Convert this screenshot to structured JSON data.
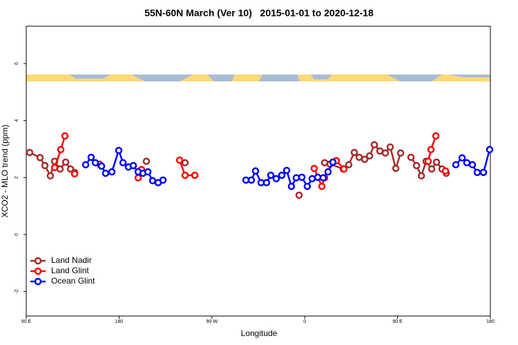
{
  "chart_data": {
    "type": "line",
    "title": "55N-60N March (Ver 10)   2015-01-01 to 2020-12-18",
    "x_label": "Longitude",
    "y_label": "XCO2 - MLO trend (ppm)",
    "xlim": [
      90,
      540
    ],
    "ylim": [
      -2.86,
      7.31
    ],
    "xticks": [
      {
        "value": 90,
        "label": "90 E"
      },
      180,
      {
        "value": 270,
        "label": "90 W"
      },
      {
        "value": 360,
        "label": "0"
      },
      {
        "value": 450,
        "label": "90 E"
      },
      {
        "value": 540,
        "label": "180"
      }
    ],
    "yticks": [
      -2,
      0,
      2,
      4,
      6
    ],
    "legend": "bottom-left",
    "series": [
      {
        "name": "Land Nadir",
        "color": "#a52a2a",
        "x": [
          93.3,
          103.4,
          108.1,
          113.4,
          117.5,
          122.8,
          128.2,
          132.9,
          136.9,
          150,
          161,
          185,
          206.5,
          225,
          244,
          300,
          354.5,
          365,
          379.3,
          384.6,
          397.4,
          402.7,
          408.1,
          412.8,
          418.1,
          422.9,
          427.5,
          432.9,
          438.2,
          442.9,
          448.3,
          453,
          458,
          463,
          468.4,
          473.1,
          477.7,
          483.1,
          487.8,
          493.1,
          497.2
        ],
        "values": [
          2.88,
          2.7,
          2.42,
          2.06,
          2.57,
          2.3,
          2.54,
          2.3,
          2.18,
          null,
          2.47,
          null,
          2.57,
          null,
          2.52,
          null,
          1.38,
          null,
          2.52,
          2.47,
          2.3,
          2.45,
          2.88,
          2.71,
          2.64,
          2.76,
          3.15,
          2.93,
          2.86,
          3.07,
          2.32,
          2.86,
          null,
          2.71,
          2.42,
          2.06,
          2.57,
          2.3,
          2.54,
          2.3,
          2.15
        ]
      },
      {
        "name": "Land Glint",
        "color": "#ff0000",
        "x": [
          117.5,
          123.5,
          127.5,
          130,
          136.9,
          170,
          198.5,
          201.8,
          220,
          238.7,
          244,
          253.4,
          300,
          369.2,
          376.6,
          379.3,
          384,
          390.7,
          398,
          440,
          479.7,
          482.4,
          487.1,
          492,
          496.5
        ],
        "values": [
          2.35,
          2.98,
          3.46,
          null,
          2.13,
          null,
          1.99,
          2.28,
          null,
          2.61,
          2.08,
          2.08,
          null,
          2.32,
          1.69,
          1.99,
          null,
          2.59,
          2.3,
          null,
          2.57,
          2.98,
          3.46,
          null,
          2.23
        ]
      },
      {
        "name": "Ocean Glint",
        "color": "#0000ff",
        "x": [
          147.6,
          152.9,
          157,
          163,
          166.9,
          173,
          179.7,
          183.8,
          189.1,
          193.8,
          198.5,
          203.2,
          207.9,
          212.5,
          217.9,
          222.6,
          260,
          303,
          308.3,
          312.3,
          317.7,
          323,
          327.1,
          332.4,
          337.8,
          342.5,
          347.1,
          351.8,
          357.2,
          362.5,
          367.2,
          372.6,
          377.9,
          382.6,
          387.3,
          450,
          506.5,
          512.6,
          517.2,
          522.6,
          527.3,
          533.3,
          539.3
        ],
        "values": [
          2.45,
          2.71,
          2.52,
          2.4,
          2.15,
          2.2,
          2.95,
          2.52,
          2.37,
          2.42,
          2.2,
          2.15,
          2.2,
          1.89,
          1.82,
          1.91,
          null,
          1.91,
          1.91,
          2.23,
          1.82,
          1.82,
          2.08,
          1.96,
          2.08,
          2.25,
          1.69,
          1.99,
          2.01,
          1.69,
          1.96,
          2.01,
          1.99,
          2.2,
          2.54,
          null,
          2.45,
          2.69,
          2.52,
          2.45,
          2.18,
          2.18,
          2.98
        ]
      }
    ]
  }
}
